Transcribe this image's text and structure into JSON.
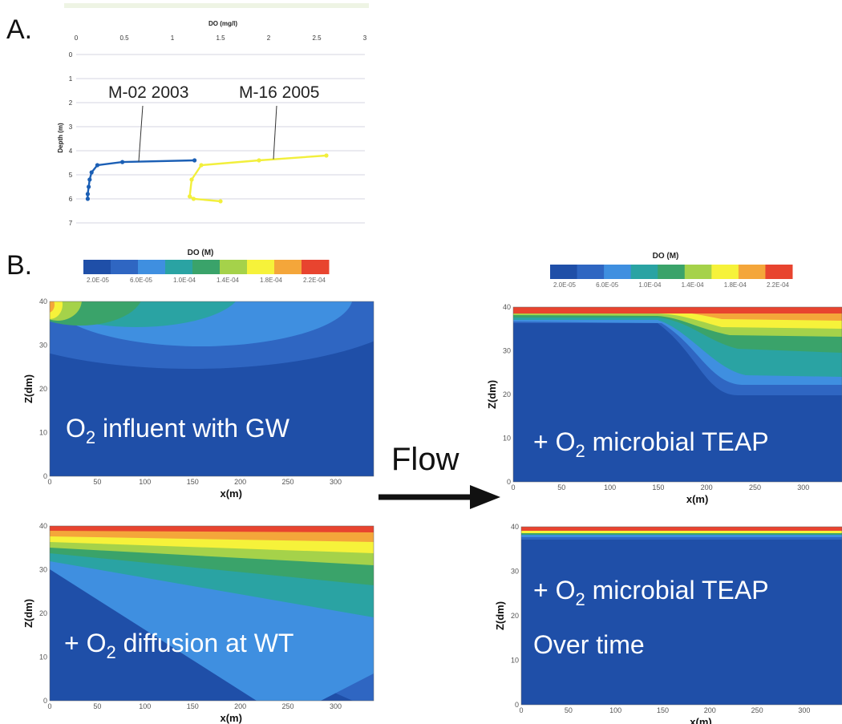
{
  "panels": {
    "a_label": "A.",
    "b_label": "B."
  },
  "flow": {
    "label": "Flow"
  },
  "colors": {
    "dark_blue": "#1f4fa8",
    "mid_blue": "#2f66c2",
    "light_blue": "#3f8fe0",
    "teal": "#2aa3a3",
    "green": "#3aa36a",
    "yellow_green": "#a5d24a",
    "yellow": "#f6f23a",
    "orange": "#f4a63a",
    "red": "#e8442f",
    "profile_m02": "#1b5fb5",
    "profile_m16": "#f2ef3c"
  },
  "chart_data": [
    {
      "type": "line",
      "id": "A",
      "xlabel": "DO (mg/l)",
      "ylabel": "Depth (m)",
      "xlim": [
        0,
        3
      ],
      "ylim": [
        0,
        7
      ],
      "x_ticks": [
        "0",
        "0.5",
        "1",
        "1.5",
        "2",
        "2.5",
        "3"
      ],
      "y_ticks": [
        "0",
        "1",
        "2",
        "3",
        "4",
        "5",
        "6",
        "7"
      ],
      "grid": true,
      "series": [
        {
          "name": "M-02 2003",
          "x": [
            1.23,
            0.48,
            0.22,
            0.16,
            0.14,
            0.13,
            0.12,
            0.12
          ],
          "y": [
            4.4,
            4.47,
            4.6,
            4.9,
            5.2,
            5.5,
            5.8,
            6.0
          ]
        },
        {
          "name": "M-16 2005",
          "x": [
            2.6,
            1.9,
            1.3,
            1.2,
            1.18,
            1.22,
            1.5
          ],
          "y": [
            4.2,
            4.4,
            4.6,
            5.2,
            5.9,
            6.0,
            6.1
          ]
        }
      ]
    },
    {
      "type": "heatmap",
      "id": "B",
      "colorbar_label": "DO (M)",
      "colorbar_ticks": [
        "2.0E-05",
        "6.0E-05",
        "1.0E-04",
        "1.4E-04",
        "1.8E-04",
        "2.2E-04"
      ],
      "xlabel": "x(m)",
      "ylabel": "Z(dm)",
      "x_ticks": [
        "0",
        "50",
        "100",
        "150",
        "200",
        "250",
        "300"
      ],
      "y_ticks": [
        "0",
        "10",
        "20",
        "30",
        "40"
      ],
      "xlim": [
        0,
        340
      ],
      "ylim": [
        0,
        40
      ],
      "plots": [
        {
          "title_main": "O",
          "title_sub": "2",
          "title_rest": " influent with GW"
        },
        {
          "title_main": "+ O",
          "title_sub": "2",
          "title_rest": " diffusion at WT"
        },
        {
          "title_main": "+ O",
          "title_sub": "2",
          "title_rest": " microbial TEAP"
        },
        {
          "title_main": "+ O",
          "title_sub": "2",
          "title_rest": " microbial TEAP",
          "title_line2": "Over time"
        }
      ]
    }
  ]
}
